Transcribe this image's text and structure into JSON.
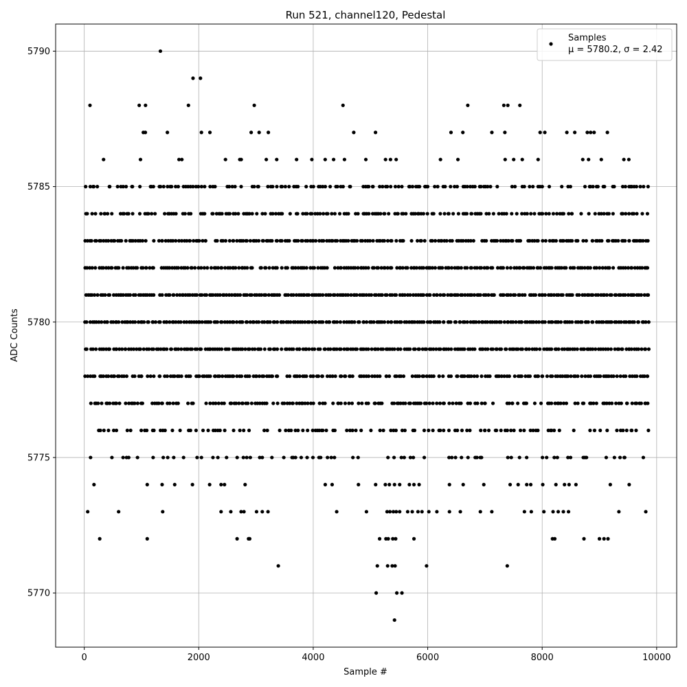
{
  "chart_data": {
    "type": "scatter",
    "title": "Run 521, channel120, Pedestal",
    "xlabel": "Sample #",
    "ylabel": "ADC Counts",
    "xlim": [
      -500,
      10350
    ],
    "ylim": [
      5768,
      5791
    ],
    "xticks": [
      0,
      2000,
      4000,
      6000,
      8000,
      10000
    ],
    "yticks": [
      5770,
      5775,
      5780,
      5785,
      5790
    ],
    "grid": true,
    "legend_position": "top-right",
    "marker_color": "#000000",
    "series": [
      {
        "name": "Samples",
        "stats_label": "μ = 5780.2, σ = 2.42",
        "n_samples": 9850,
        "x_step": 1,
        "y_levels": [
          5769,
          5770,
          5771,
          5772,
          5773,
          5774,
          5775,
          5776,
          5777,
          5778,
          5779,
          5780,
          5781,
          5782,
          5783,
          5784,
          5785,
          5786,
          5787,
          5788,
          5789,
          5790
        ],
        "points": [
          [
            1330,
            5790
          ],
          [
            1900,
            5789
          ],
          [
            2030,
            5789
          ],
          [
            100,
            5788
          ],
          [
            960,
            5788
          ],
          [
            1070,
            5788
          ],
          [
            1820,
            5788
          ],
          [
            2970,
            5788
          ],
          [
            4520,
            5788
          ],
          [
            6700,
            5788
          ],
          [
            7330,
            5788
          ],
          [
            7400,
            5788
          ],
          [
            7610,
            5788
          ],
          [
            5420,
            5769
          ],
          [
            5100,
            5770
          ],
          [
            5460,
            5770
          ],
          [
            5550,
            5770
          ],
          [
            3390,
            5771
          ],
          [
            5120,
            5771
          ],
          [
            5300,
            5771
          ],
          [
            5380,
            5771
          ],
          [
            5430,
            5771
          ],
          [
            5980,
            5771
          ],
          [
            7390,
            5771
          ],
          [
            270,
            5772
          ],
          [
            1100,
            5772
          ],
          [
            2670,
            5772
          ],
          [
            2870,
            5772
          ],
          [
            2890,
            5772
          ],
          [
            5160,
            5772
          ],
          [
            5270,
            5772
          ],
          [
            5310,
            5772
          ],
          [
            5390,
            5772
          ],
          [
            5440,
            5772
          ],
          [
            5760,
            5772
          ],
          [
            8180,
            5772
          ],
          [
            8220,
            5772
          ],
          [
            8730,
            5772
          ],
          [
            9000,
            5772
          ],
          [
            9080,
            5772
          ],
          [
            9150,
            5772
          ],
          [
            60,
            5773
          ],
          [
            600,
            5773
          ],
          [
            1370,
            5773
          ],
          [
            2390,
            5773
          ],
          [
            2560,
            5773
          ],
          [
            2740,
            5773
          ],
          [
            2790,
            5773
          ],
          [
            3010,
            5773
          ],
          [
            3110,
            5773
          ],
          [
            3210,
            5773
          ],
          [
            4410,
            5773
          ],
          [
            4930,
            5773
          ],
          [
            5290,
            5773
          ],
          [
            5340,
            5773
          ],
          [
            5400,
            5773
          ],
          [
            5450,
            5773
          ],
          [
            5510,
            5773
          ],
          [
            5650,
            5773
          ],
          [
            5730,
            5773
          ],
          [
            5830,
            5773
          ],
          [
            5900,
            5773
          ],
          [
            6020,
            5773
          ],
          [
            6160,
            5773
          ],
          [
            6380,
            5773
          ],
          [
            6570,
            5773
          ],
          [
            6920,
            5773
          ],
          [
            7120,
            5773
          ],
          [
            7690,
            5773
          ],
          [
            7810,
            5773
          ],
          [
            8030,
            5773
          ],
          [
            8190,
            5773
          ],
          [
            8280,
            5773
          ],
          [
            8370,
            5773
          ],
          [
            8460,
            5773
          ],
          [
            9340,
            5773
          ],
          [
            9810,
            5773
          ],
          [
            170,
            5774
          ],
          [
            1100,
            5774
          ],
          [
            1360,
            5774
          ],
          [
            1580,
            5774
          ],
          [
            1890,
            5774
          ],
          [
            2190,
            5774
          ],
          [
            2390,
            5774
          ],
          [
            2450,
            5774
          ],
          [
            2810,
            5774
          ],
          [
            4210,
            5774
          ],
          [
            4330,
            5774
          ],
          [
            4790,
            5774
          ],
          [
            5090,
            5774
          ],
          [
            5260,
            5774
          ],
          [
            5330,
            5774
          ],
          [
            5420,
            5774
          ],
          [
            5510,
            5774
          ],
          [
            5680,
            5774
          ],
          [
            5760,
            5774
          ],
          [
            5850,
            5774
          ],
          [
            6380,
            5774
          ],
          [
            6620,
            5774
          ],
          [
            6980,
            5774
          ],
          [
            7440,
            5774
          ],
          [
            7580,
            5774
          ],
          [
            7730,
            5774
          ],
          [
            7800,
            5774
          ],
          [
            8010,
            5774
          ],
          [
            8240,
            5774
          ],
          [
            8390,
            5774
          ],
          [
            8470,
            5774
          ],
          [
            8590,
            5774
          ],
          [
            9190,
            5774
          ],
          [
            9520,
            5774
          ]
        ]
      }
    ]
  }
}
